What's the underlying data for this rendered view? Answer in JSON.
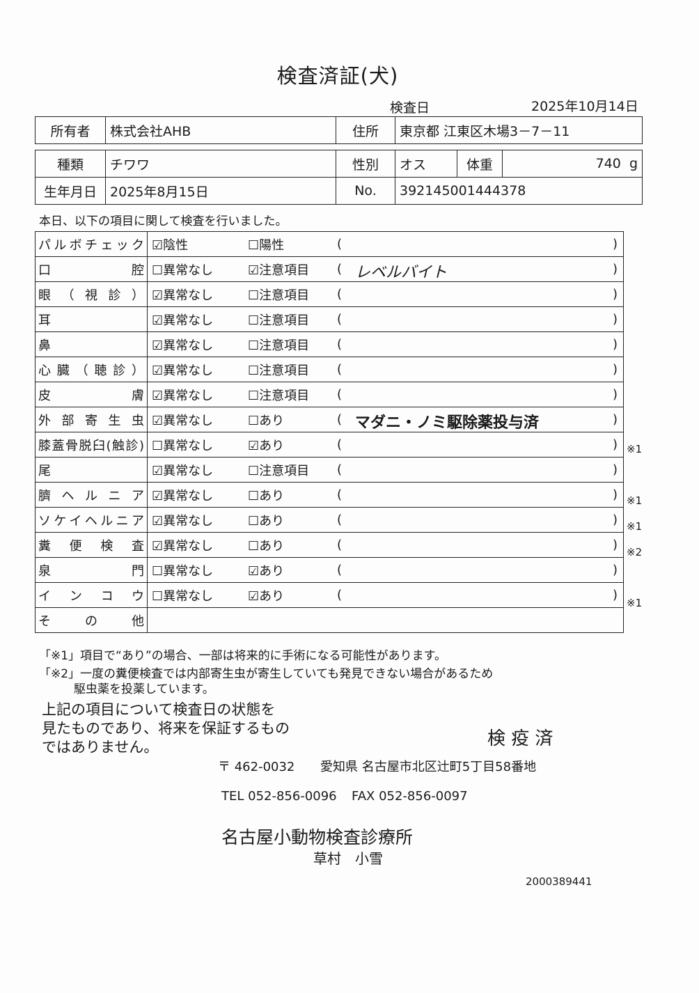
{
  "title": "検査済証(犬)",
  "exam_date_label": "検査日",
  "exam_date": "2025年10月14日",
  "owner": {
    "label": "所有者",
    "value": "株式会社AHB",
    "address_label": "住所",
    "address": "東京都 江東区木場3－7－11"
  },
  "pet": {
    "type_label": "種類",
    "type": "チワワ",
    "sex_label": "性別",
    "sex": "オス",
    "weight_label": "体重",
    "weight": "740",
    "weight_unit": "g",
    "dob_label": "生年月日",
    "dob": "2025年8月15日",
    "no_label": "No.",
    "no": "392145001444378"
  },
  "intro": "本日、以下の項目に関して検査を行いました。",
  "rows": [
    {
      "name": "パルボチェック",
      "opt1": "陰性",
      "opt1_checked": true,
      "opt2": "陽性",
      "opt2_checked": false,
      "remark": "",
      "note": ""
    },
    {
      "name": "口腔",
      "opt1": "異常なし",
      "opt1_checked": false,
      "opt2": "注意項目",
      "opt2_checked": true,
      "remark": "レベルバイト",
      "note": ""
    },
    {
      "name": "眼（視診）",
      "opt1": "異常なし",
      "opt1_checked": true,
      "opt2": "注意項目",
      "opt2_checked": false,
      "remark": "",
      "note": ""
    },
    {
      "name": "耳",
      "opt1": "異常なし",
      "opt1_checked": true,
      "opt2": "注意項目",
      "opt2_checked": false,
      "remark": "",
      "note": ""
    },
    {
      "name": "鼻",
      "opt1": "異常なし",
      "opt1_checked": true,
      "opt2": "注意項目",
      "opt2_checked": false,
      "remark": "",
      "note": ""
    },
    {
      "name": "心臓（聴診）",
      "opt1": "異常なし",
      "opt1_checked": true,
      "opt2": "注意項目",
      "opt2_checked": false,
      "remark": "",
      "note": ""
    },
    {
      "name": "皮膚",
      "opt1": "異常なし",
      "opt1_checked": true,
      "opt2": "注意項目",
      "opt2_checked": false,
      "remark": "",
      "note": ""
    },
    {
      "name": "外部寄生虫",
      "opt1": "異常なし",
      "opt1_checked": true,
      "opt2": "あり",
      "opt2_checked": false,
      "remark": "マダニ・ノミ駆除薬投与済",
      "note": ""
    },
    {
      "name": "膝蓋骨脱臼(触診)",
      "opt1": "異常なし",
      "opt1_checked": false,
      "opt2": "あり",
      "opt2_checked": true,
      "remark": "",
      "note": "※1"
    },
    {
      "name": "尾",
      "opt1": "異常なし",
      "opt1_checked": true,
      "opt2": "注意項目",
      "opt2_checked": false,
      "remark": "",
      "note": ""
    },
    {
      "name": "臍ヘルニア",
      "opt1": "異常なし",
      "opt1_checked": true,
      "opt2": "あり",
      "opt2_checked": false,
      "remark": "",
      "note": "※1"
    },
    {
      "name": "ソケイヘルニア",
      "opt1": "異常なし",
      "opt1_checked": true,
      "opt2": "あり",
      "opt2_checked": false,
      "remark": "",
      "note": "※1"
    },
    {
      "name": "糞便検査",
      "opt1": "異常なし",
      "opt1_checked": true,
      "opt2": "あり",
      "opt2_checked": false,
      "remark": "",
      "note": "※2"
    },
    {
      "name": "泉門",
      "opt1": "異常なし",
      "opt1_checked": false,
      "opt2": "あり",
      "opt2_checked": true,
      "remark": "",
      "note": ""
    },
    {
      "name": "インコウ",
      "opt1": "異常なし",
      "opt1_checked": false,
      "opt2": "あり",
      "opt2_checked": true,
      "remark": "",
      "note": "※1"
    }
  ],
  "other_label": "その他",
  "footnote1": "「※1」項目で“あり”の場合、一部は将来的に手術になる可能性があります。",
  "footnote2a": "「※2」一度の糞便検査では内部寄生虫が寄生していても発見できない場合があるため",
  "footnote2b": "駆虫薬を投薬しています。",
  "disclaimer": [
    "上記の項目について検査日の状態を",
    "見たものであり、将来を保証するもの",
    "ではありません。"
  ],
  "stamp": "検 疫 済",
  "clinic": {
    "postal": "〒 462-0032",
    "address": "愛知県 名古屋市北区辻町5丁目58番地",
    "tel": "TEL 052-856-0096",
    "fax": "FAX 052-856-0097",
    "name": "名古屋小動物検査診療所",
    "person": "草村　小雪"
  },
  "serial": "2000389441"
}
